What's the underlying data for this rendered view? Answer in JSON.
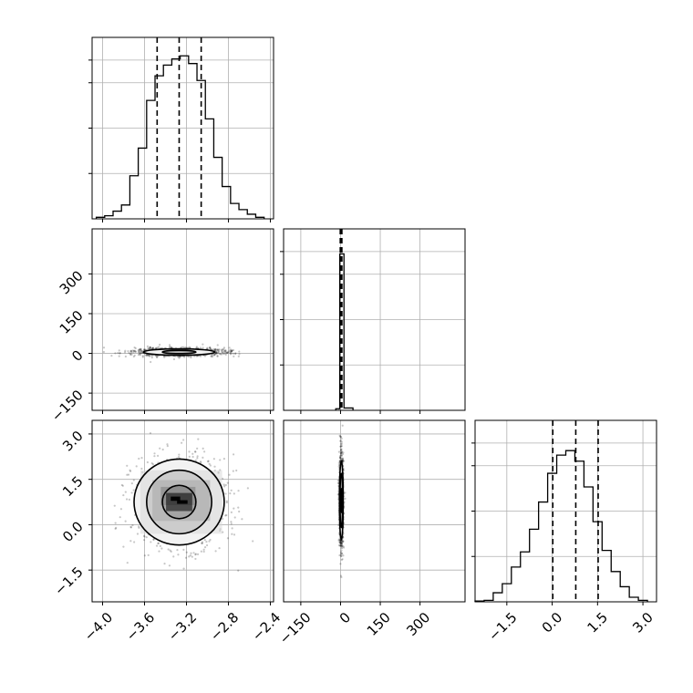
{
  "chart_data": {
    "type": "corner",
    "grid": true,
    "parameters": [
      {
        "index": 0,
        "range": [
          -4.1,
          -2.37
        ],
        "ticks": [
          {
            "value": -4.0,
            "label": "−4.0"
          },
          {
            "value": -3.6,
            "label": "−3.6"
          },
          {
            "value": -3.2,
            "label": "−3.2"
          },
          {
            "value": -2.8,
            "label": "−2.8"
          },
          {
            "value": -2.4,
            "label": "−2.4"
          }
        ],
        "histogram": {
          "bin_edges": [
            -4.06,
            -3.98,
            -3.9,
            -3.82,
            -3.74,
            -3.66,
            -3.58,
            -3.5,
            -3.42,
            -3.34,
            -3.26,
            -3.18,
            -3.1,
            -3.02,
            -2.94,
            -2.86,
            -2.78,
            -2.7,
            -2.62,
            -2.54,
            -2.46
          ],
          "counts": [
            1,
            2,
            5,
            9,
            28,
            46,
            77,
            93,
            100,
            104,
            106,
            101,
            90,
            65,
            40,
            21,
            10,
            6,
            3,
            1
          ],
          "count_max": 118
        },
        "quantiles": [
          -3.48,
          -3.27,
          -3.06
        ]
      },
      {
        "index": 1,
        "range": [
          -215,
          470
        ],
        "ticks": [
          {
            "value": -150,
            "label": "−150"
          },
          {
            "value": 0,
            "label": "0"
          },
          {
            "value": 150,
            "label": "150"
          },
          {
            "value": 300,
            "label": "300"
          }
        ],
        "histogram": {
          "bin_edges": [
            -18,
            -3,
            13,
            47
          ],
          "counts": [
            1,
            100,
            1.5
          ],
          "count_max": 116
        },
        "quantiles": [
          -1,
          2,
          5
        ]
      },
      {
        "index": 2,
        "range": [
          -2.55,
          3.45
        ],
        "ticks": [
          {
            "value": -1.5,
            "label": "−1.5"
          },
          {
            "value": 0.0,
            "label": "0.0"
          },
          {
            "value": 1.5,
            "label": "1.5"
          },
          {
            "value": 3.0,
            "label": "3.0"
          }
        ],
        "histogram": {
          "bin_edges": [
            -2.55,
            -2.25,
            -1.95,
            -1.65,
            -1.35,
            -1.05,
            -0.75,
            -0.45,
            -0.15,
            0.15,
            0.45,
            0.75,
            1.05,
            1.35,
            1.65,
            1.95,
            2.25,
            2.55,
            2.85,
            3.15
          ],
          "counts": [
            0.5,
            1,
            6,
            12,
            23,
            33,
            48,
            66,
            85,
            97,
            100,
            93,
            76,
            53,
            34,
            20,
            10,
            3,
            1
          ],
          "count_max": 120
        },
        "quantiles": [
          0.02,
          0.78,
          1.52
        ]
      }
    ],
    "pairs": [
      {
        "x_param": 0,
        "y_param": 1,
        "center": [
          -3.27,
          5
        ],
        "sigma": [
          0.22,
          8
        ],
        "cloud_extent": [
          0.75,
          70
        ],
        "contours": [
          {
            "level": 1,
            "rx": 0.16,
            "ry": 6
          },
          {
            "level": 2,
            "rx": 0.34,
            "ry": 12
          }
        ]
      },
      {
        "x_param": 0,
        "y_param": 2,
        "center": [
          -3.27,
          0.75
        ],
        "sigma": [
          0.22,
          0.75
        ],
        "cloud_extent": [
          0.8,
          2.6
        ],
        "contours": [
          {
            "level": 1,
            "rx": 0.16,
            "ry": 0.55
          },
          {
            "level": 2,
            "rx": 0.31,
            "ry": 1.05
          },
          {
            "level": 3,
            "rx": 0.43,
            "ry": 1.42
          }
        ],
        "density_blocks": [
          {
            "x": -3.27,
            "y": 0.75,
            "w": 0.25,
            "h": 0.6,
            "shade": "#000000"
          },
          {
            "x": -3.28,
            "y": 0.95,
            "w": 0.33,
            "h": 0.6,
            "shade": "#7a7a7a"
          },
          {
            "x": -3.25,
            "y": 0.8,
            "w": 0.55,
            "h": 1.35,
            "shade": "#a8a8a8"
          },
          {
            "x": -3.25,
            "y": 0.75,
            "w": 0.78,
            "h": 2.1,
            "shade": "#d8d8d8"
          }
        ]
      },
      {
        "x_param": 1,
        "y_param": 2,
        "center": [
          3,
          0.8
        ],
        "sigma": [
          4,
          0.75
        ],
        "cloud_extent": [
          40,
          2.7
        ],
        "contours": [
          {
            "level": 1,
            "rx": 2,
            "ry": 0.4
          },
          {
            "level": 2,
            "rx": 5,
            "ry": 0.9
          },
          {
            "level": 3,
            "rx": 7,
            "ry": 1.3
          }
        ]
      }
    ]
  }
}
